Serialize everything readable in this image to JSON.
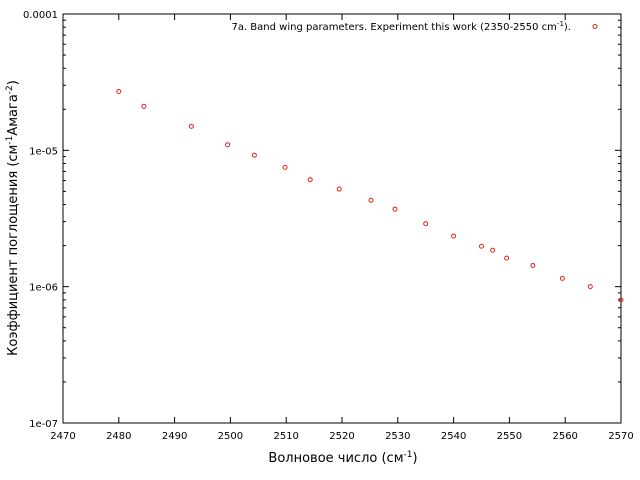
{
  "chart_data": {
    "type": "scatter",
    "x": [
      2480,
      2484.5,
      2493,
      2499.5,
      2504.3,
      2509.8,
      2514.3,
      2519.5,
      2525.2,
      2529.5,
      2535,
      2540,
      2545,
      2547,
      2549.5,
      2554.2,
      2559.5,
      2564.5,
      2570
    ],
    "y": [
      2.7e-05,
      2.1e-05,
      1.5e-05,
      1.1e-05,
      9.2e-06,
      7.5e-06,
      6.1e-06,
      5.2e-06,
      4.3e-06,
      3.7e-06,
      2.9e-06,
      2.35e-06,
      1.98e-06,
      1.85e-06,
      1.62e-06,
      1.43e-06,
      1.15e-06,
      1e-06,
      8e-07
    ],
    "series": [
      {
        "name_prefix": "7a. Band wing parameters. Experiment this work (2350-2550 cm",
        "name_sup": "-1",
        "name_suffix": ").",
        "color": "#e8211b"
      }
    ],
    "xlabel": {
      "prefix": "Волновое число (см",
      "sup": "-1",
      "suffix": ")"
    },
    "ylabel": {
      "prefix": "Коэффициент поглощения (см",
      "sup1": "-1",
      "mid": "Амага",
      "sup2": "-2",
      "suffix": ")"
    },
    "xlim": [
      2470,
      2570
    ],
    "ylim": [
      1e-07,
      0.0001
    ],
    "yscale": "log",
    "xticks": [
      2470,
      2480,
      2490,
      2500,
      2510,
      2520,
      2530,
      2540,
      2550,
      2560,
      2570
    ],
    "xtick_labels": [
      "2470",
      "2480",
      "2490",
      "2500",
      "2510",
      "2520",
      "2530",
      "2540",
      "2550",
      "2560",
      "2570"
    ],
    "yticks": [
      1e-07,
      1e-06,
      1e-05,
      0.0001
    ],
    "ytick_labels": [
      "1e-07",
      "1e-06",
      "1e-05",
      "0.0001"
    ],
    "grid": false,
    "legend_position": "top-right"
  }
}
